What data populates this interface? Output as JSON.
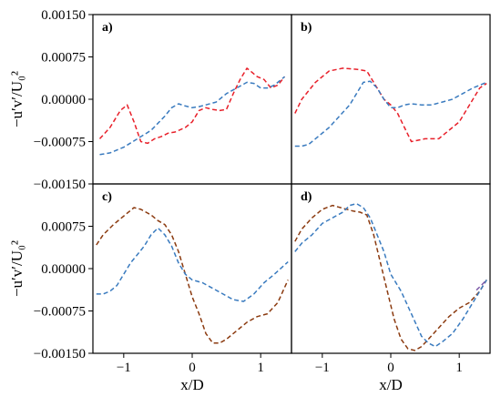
{
  "chart_data": {
    "type": "line",
    "y_label": "−u′v′/U₀²",
    "x_label": "x/D",
    "y_ticks": [
      0.0015,
      0.00075,
      0,
      -0.00075,
      -0.0015
    ],
    "y_tick_labels": [
      "0.00150",
      "0.00075",
      "0.00000",
      "−0.00075",
      "−0.00150"
    ],
    "x_ticks": [
      -1,
      0,
      1
    ],
    "x_tick_labels": [
      "−1",
      "0",
      "1"
    ],
    "xlim": [
      -1.45,
      1.45
    ],
    "ylim": [
      -0.0015,
      0.0015
    ],
    "grid": false,
    "colors": {
      "red": "#e8202a",
      "blue": "#3a7bbf",
      "brown": "#8b3a0f",
      "purple": "#7d5aa8"
    },
    "panels": [
      {
        "label": "a)",
        "series": [
          {
            "color": "red",
            "x": [
              -1.35,
              -1.2,
              -1.05,
              -0.95,
              -0.85,
              -0.75,
              -0.65,
              -0.55,
              -0.45,
              -0.35,
              -0.25,
              -0.1,
              0,
              0.1,
              0.2,
              0.3,
              0.4,
              0.5,
              0.6,
              0.7,
              0.8,
              0.85,
              0.95,
              1.05,
              1.15,
              1.25,
              1.35
            ],
            "y": [
              -0.0007,
              -0.0005,
              -0.0002,
              -0.0001,
              -0.0004,
              -0.00075,
              -0.00078,
              -0.0007,
              -0.00066,
              -0.0006,
              -0.00058,
              -0.0005,
              -0.0004,
              -0.0002,
              -0.00015,
              -0.00018,
              -0.0002,
              -0.00018,
              0.0001,
              0.00035,
              0.00055,
              0.0005,
              0.0004,
              0.00035,
              0.0002,
              0.00025,
              0.0004
            ]
          },
          {
            "color": "blue",
            "x": [
              -1.35,
              -1.2,
              -1.0,
              -0.8,
              -0.6,
              -0.4,
              -0.3,
              -0.2,
              -0.1,
              0.0,
              0.1,
              0.2,
              0.35,
              0.5,
              0.65,
              0.8,
              0.9,
              1.0,
              1.1,
              1.2,
              1.35
            ],
            "y": [
              -0.00098,
              -0.00095,
              -0.00085,
              -0.0007,
              -0.00055,
              -0.0003,
              -0.00015,
              -8e-05,
              -0.00012,
              -0.00015,
              -0.00013,
              -0.0001,
              -5e-05,
              0.0001,
              0.0002,
              0.0003,
              0.00028,
              0.0002,
              0.0002,
              0.00025,
              0.0004
            ]
          }
        ]
      },
      {
        "label": "b)",
        "series": [
          {
            "color": "red",
            "x": [
              -1.4,
              -1.3,
              -1.1,
              -0.9,
              -0.7,
              -0.5,
              -0.35,
              -0.25,
              -0.1,
              0.0,
              0.1,
              0.2,
              0.3,
              0.5,
              0.7,
              0.8,
              0.9,
              1.0,
              1.1,
              1.2,
              1.3,
              1.4
            ],
            "y": [
              -0.00025,
              0.0,
              0.0003,
              0.0005,
              0.00055,
              0.00053,
              0.0005,
              0.0003,
              0.0,
              -0.0001,
              -0.00025,
              -0.0005,
              -0.00075,
              -0.0007,
              -0.0007,
              -0.0006,
              -0.0005,
              -0.0004,
              -0.0002,
              0.0,
              0.0002,
              0.00028
            ]
          },
          {
            "color": "blue",
            "x": [
              -1.4,
              -1.3,
              -1.2,
              -1.05,
              -0.9,
              -0.75,
              -0.6,
              -0.5,
              -0.4,
              -0.3,
              -0.2,
              -0.1,
              0.0,
              0.1,
              0.2,
              0.3,
              0.45,
              0.6,
              0.75,
              0.9,
              1.05,
              1.2,
              1.3,
              1.4
            ],
            "y": [
              -0.00083,
              -0.00083,
              -0.0008,
              -0.00065,
              -0.0005,
              -0.0003,
              -0.0001,
              0.0001,
              0.0003,
              0.00032,
              0.0002,
              0.0,
              -0.00015,
              -0.00015,
              -0.0001,
              -8e-05,
              -0.0001,
              -0.0001,
              -5e-05,
              0.0,
              0.0001,
              0.0002,
              0.00025,
              0.0003
            ]
          }
        ]
      },
      {
        "label": "c)",
        "series": [
          {
            "color": "brown",
            "x": [
              -1.4,
              -1.3,
              -1.15,
              -1.0,
              -0.85,
              -0.75,
              -0.6,
              -0.5,
              -0.4,
              -0.3,
              -0.2,
              -0.1,
              0.0,
              0.1,
              0.2,
              0.3,
              0.4,
              0.5,
              0.65,
              0.8,
              0.95,
              1.1,
              1.25,
              1.4
            ],
            "y": [
              0.00042,
              0.0006,
              0.00078,
              0.00093,
              0.00108,
              0.00105,
              0.00095,
              0.00085,
              0.00078,
              0.0006,
              0.0003,
              -0.0001,
              -0.0005,
              -0.0008,
              -0.00115,
              -0.00132,
              -0.00132,
              -0.00125,
              -0.0011,
              -0.00095,
              -0.00085,
              -0.0008,
              -0.0006,
              -0.0002
            ]
          },
          {
            "color": "blue",
            "x": [
              -1.4,
              -1.3,
              -1.2,
              -1.1,
              -1.0,
              -0.9,
              -0.8,
              -0.7,
              -0.6,
              -0.5,
              -0.4,
              -0.3,
              -0.2,
              -0.1,
              0.0,
              0.15,
              0.3,
              0.45,
              0.6,
              0.75,
              0.9,
              1.05,
              1.2,
              1.4
            ],
            "y": [
              -0.00045,
              -0.00045,
              -0.0004,
              -0.0003,
              -0.0001,
              0.0001,
              0.00025,
              0.0004,
              0.0006,
              0.00072,
              0.0006,
              0.0004,
              0.0001,
              -0.0001,
              -0.0002,
              -0.00025,
              -0.00035,
              -0.00045,
              -0.00055,
              -0.00058,
              -0.00045,
              -0.00025,
              -0.0001,
              0.00012
            ]
          }
        ]
      },
      {
        "label": "d)",
        "series": [
          {
            "color": "brown",
            "x": [
              -1.4,
              -1.3,
              -1.15,
              -1.0,
              -0.85,
              -0.7,
              -0.55,
              -0.45,
              -0.35,
              -0.25,
              -0.15,
              -0.05,
              0.05,
              0.15,
              0.25,
              0.35,
              0.45,
              0.55,
              0.7,
              0.85,
              1.0,
              1.15,
              1.3,
              1.4
            ],
            "y": [
              0.00048,
              0.0007,
              0.0009,
              0.00105,
              0.00112,
              0.00107,
              0.00102,
              0.001,
              0.00095,
              0.0006,
              0.0001,
              -0.0004,
              -0.0009,
              -0.00125,
              -0.00142,
              -0.00145,
              -0.00138,
              -0.00125,
              -0.00105,
              -0.00085,
              -0.0007,
              -0.0006,
              -0.0004,
              -0.0002
            ]
          },
          {
            "color": "blue",
            "x": [
              -1.4,
              -1.3,
              -1.15,
              -1.0,
              -0.85,
              -0.7,
              -0.6,
              -0.5,
              -0.4,
              -0.3,
              -0.2,
              -0.1,
              0.0,
              0.15,
              0.3,
              0.45,
              0.55,
              0.65,
              0.75,
              0.9,
              1.05,
              1.2,
              1.3,
              1.4
            ],
            "y": [
              0.0003,
              0.00045,
              0.0006,
              0.0008,
              0.0009,
              0.001,
              0.00112,
              0.00115,
              0.00108,
              0.0009,
              0.0006,
              0.0003,
              -0.0001,
              -0.0004,
              -0.0008,
              -0.0012,
              -0.00132,
              -0.00138,
              -0.0013,
              -0.00115,
              -0.0009,
              -0.0006,
              -0.0004,
              -0.0002
            ]
          },
          {
            "color": "purple",
            "x": [
              1.25,
              1.32,
              1.4
            ],
            "y": [
              -0.00038,
              -0.0003,
              -0.0002
            ]
          }
        ]
      }
    ]
  }
}
